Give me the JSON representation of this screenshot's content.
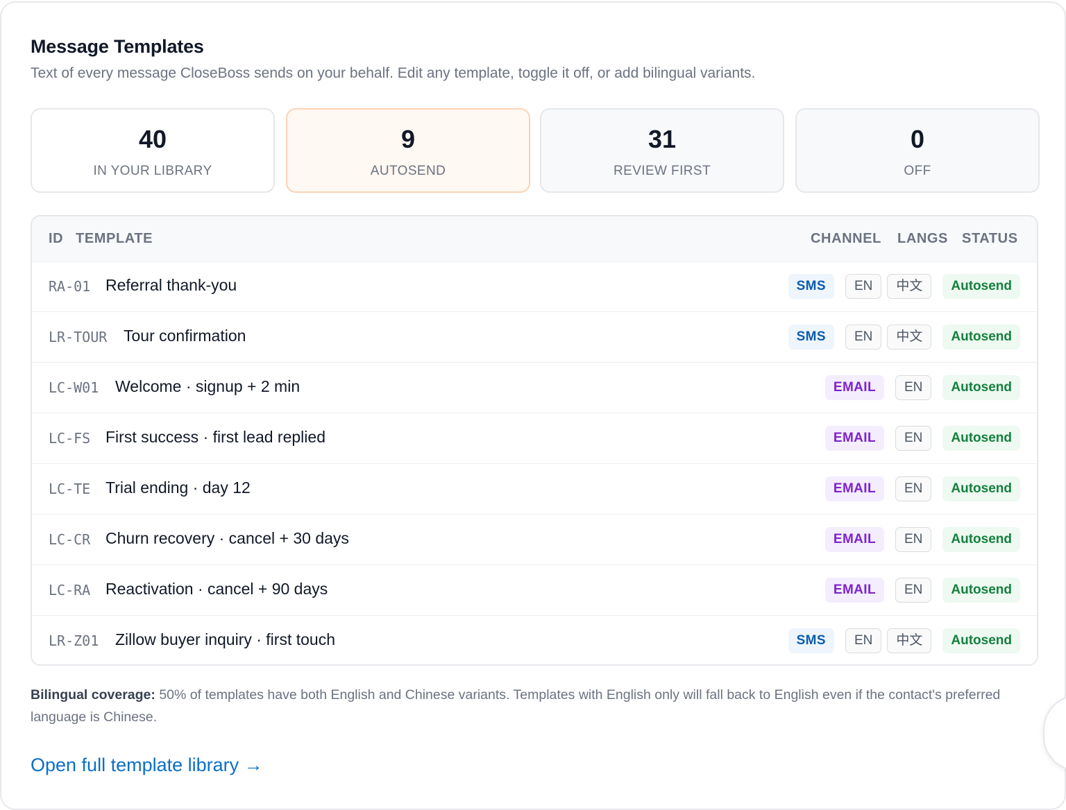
{
  "header": {
    "title": "Message Templates",
    "subtitle": "Text of every message CloseBoss sends on your behalf. Edit any template, toggle it off, or add bilingual variants."
  },
  "stats": [
    {
      "value": "40",
      "label": "IN YOUR LIBRARY"
    },
    {
      "value": "9",
      "label": "AUTOSEND"
    },
    {
      "value": "31",
      "label": "REVIEW FIRST"
    },
    {
      "value": "0",
      "label": "OFF"
    }
  ],
  "table": {
    "columns": {
      "id": "ID",
      "template": "TEMPLATE",
      "channel": "CHANNEL",
      "langs": "LANGS",
      "status": "STATUS"
    },
    "rows": [
      {
        "id": "RA-01",
        "name": "Referral thank-you",
        "channel": "SMS",
        "langs": [
          "EN",
          "中文"
        ],
        "status": "Autosend"
      },
      {
        "id": "LR-TOUR",
        "name": "Tour confirmation",
        "channel": "SMS",
        "langs": [
          "EN",
          "中文"
        ],
        "status": "Autosend"
      },
      {
        "id": "LC-W01",
        "name": "Welcome · signup + 2 min",
        "channel": "EMAIL",
        "langs": [
          "EN"
        ],
        "status": "Autosend"
      },
      {
        "id": "LC-FS",
        "name": "First success · first lead replied",
        "channel": "EMAIL",
        "langs": [
          "EN"
        ],
        "status": "Autosend"
      },
      {
        "id": "LC-TE",
        "name": "Trial ending · day 12",
        "channel": "EMAIL",
        "langs": [
          "EN"
        ],
        "status": "Autosend"
      },
      {
        "id": "LC-CR",
        "name": "Churn recovery · cancel + 30 days",
        "channel": "EMAIL",
        "langs": [
          "EN"
        ],
        "status": "Autosend"
      },
      {
        "id": "LC-RA",
        "name": "Reactivation · cancel + 90 days",
        "channel": "EMAIL",
        "langs": [
          "EN"
        ],
        "status": "Autosend"
      },
      {
        "id": "LR-Z01",
        "name": "Zillow buyer inquiry · first touch",
        "channel": "SMS",
        "langs": [
          "EN",
          "中文"
        ],
        "status": "Autosend"
      }
    ]
  },
  "coverage": {
    "label": "Bilingual coverage:",
    "text": "50% of templates have both English and Chinese variants. Templates with English only will fall back to English even if the contact's preferred language is Chinese."
  },
  "footer": {
    "link_label": "Open full template library →"
  },
  "colors": {
    "accent_link": "#0b6fc6",
    "sms": "#0b5cad",
    "email": "#7e22ce",
    "autosend": "#15803d"
  },
  "icons": {
    "fab": "assistant-icon"
  }
}
